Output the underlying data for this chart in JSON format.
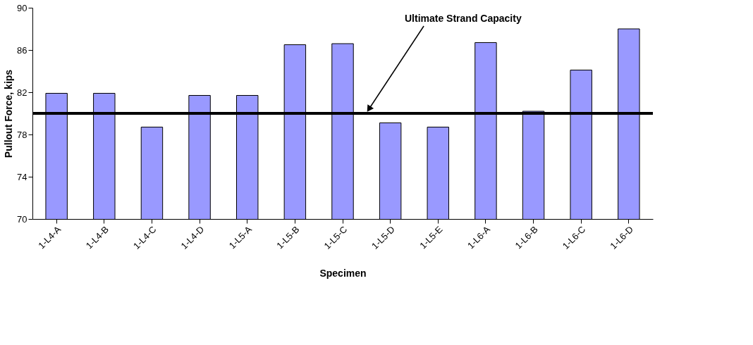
{
  "chart_data": {
    "type": "bar",
    "xlabel": "Specimen",
    "ylabel": "Pullout Force, kips",
    "categories": [
      "1-L4-A",
      "1-L4-B",
      "1-L4-C",
      "1-L4-D",
      "1-L5-A",
      "1-L5-B",
      "1-L5-C",
      "1-L5-D",
      "1-L5-E",
      "1-L6-A",
      "1-L6-B",
      "1-L6-C",
      "1-L6-D"
    ],
    "values": [
      81.9,
      81.9,
      78.7,
      81.7,
      81.7,
      86.5,
      86.6,
      79.1,
      78.7,
      86.7,
      80.2,
      84.1,
      88.0
    ],
    "color": "#9999ff",
    "ylim": [
      70,
      90
    ],
    "yticks": [
      70,
      74,
      78,
      82,
      86,
      90
    ],
    "grid": false,
    "ref_lines": [
      {
        "axis": "y",
        "value": 80,
        "label": "Ultimate Strand Capacity",
        "color": "#000000"
      }
    ]
  }
}
